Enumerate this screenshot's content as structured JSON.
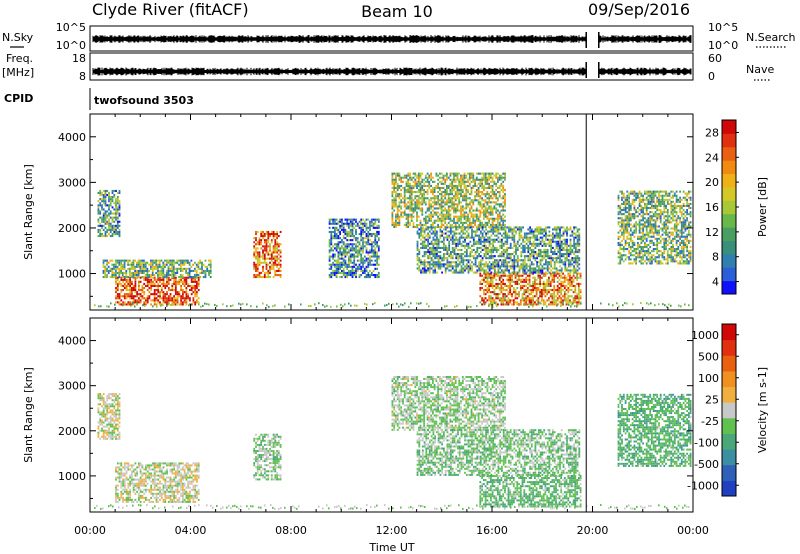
{
  "header": {
    "station": "Clyde River (fitACF)",
    "beam": "Beam 10",
    "date": "09/Sep/2016"
  },
  "params": {
    "nsky_label": "N.Sky",
    "nsky_ticks": [
      "10^5",
      "10^0"
    ],
    "nsearch_label": "N.Search",
    "nsearch_ticks": [
      "10^5",
      "10^0"
    ],
    "freq_label_1": "Freq.",
    "freq_label_2": "[MHz]",
    "freq_ticks": [
      "18",
      "8"
    ],
    "nave_label": "Nave",
    "nave_ticks": [
      "60",
      "0"
    ],
    "cpid_label": "CPID",
    "cpid_value": "twofsound 3503",
    "data_gap": [
      "19:45",
      "20:15"
    ]
  },
  "colors": {
    "power_scale": [
      "#1010ff",
      "#2b5fd8",
      "#2f7fb0",
      "#3a8f7a",
      "#4a9f60",
      "#6ab84a",
      "#a8c838",
      "#d4c828",
      "#f0b018",
      "#f08a10",
      "#e86010",
      "#e03010",
      "#d00808"
    ],
    "velocity_scale": [
      "#2040c0",
      "#3060b8",
      "#3a8fa0",
      "#4aa878",
      "#60c050",
      "#c8c8c8",
      "#f0b040",
      "#f09020",
      "#e86010",
      "#e03010",
      "#d00808"
    ]
  },
  "chart_data": [
    {
      "type": "heatmap",
      "name": "power",
      "ylabel": "Slant Range [km]",
      "yticks": [
        "1000",
        "2000",
        "3000",
        "4000"
      ],
      "ylim": [
        200,
        4500
      ],
      "x_ticks": [
        "00:00",
        "04:00",
        "08:00",
        "12:00",
        "16:00",
        "20:00",
        "00:00"
      ],
      "xlim_hours": [
        0,
        24
      ],
      "colorbar": {
        "label": "Power [dB]",
        "ticks": [
          "28",
          "24",
          "20",
          "16",
          "12",
          "8",
          "4"
        ],
        "range": [
          0,
          30
        ]
      },
      "regions": [
        {
          "t0": 1.0,
          "t1": 4.3,
          "r0": 300,
          "r1": 900,
          "level": 26
        },
        {
          "t0": 0.5,
          "t1": 4.8,
          "r0": 900,
          "r1": 1300,
          "level": 12
        },
        {
          "t0": 0.3,
          "t1": 1.2,
          "r0": 1800,
          "r1": 2800,
          "level": 10
        },
        {
          "t0": 6.5,
          "t1": 7.6,
          "r0": 900,
          "r1": 1900,
          "level": 24
        },
        {
          "t0": 9.5,
          "t1": 11.5,
          "r0": 900,
          "r1": 2200,
          "level": 8
        },
        {
          "t0": 12.0,
          "t1": 16.5,
          "r0": 2000,
          "r1": 3200,
          "level": 14
        },
        {
          "t0": 15.5,
          "t1": 19.5,
          "r0": 300,
          "r1": 1000,
          "level": 22
        },
        {
          "t0": 13.0,
          "t1": 19.5,
          "r0": 1000,
          "r1": 2000,
          "level": 10
        },
        {
          "t0": 21.0,
          "t1": 23.9,
          "r0": 1200,
          "r1": 2800,
          "level": 12
        }
      ]
    },
    {
      "type": "heatmap",
      "name": "velocity",
      "ylabel": "Slant Range [km]",
      "yticks": [
        "1000",
        "2000",
        "3000",
        "4000"
      ],
      "ylim": [
        200,
        4500
      ],
      "x_ticks": [
        "00:00",
        "04:00",
        "08:00",
        "12:00",
        "16:00",
        "20:00",
        "00:00"
      ],
      "xlabel": "Time UT",
      "xlim_hours": [
        0,
        24
      ],
      "colorbar": {
        "label": "Velocity [m s-1]",
        "ticks": [
          "1000",
          "500",
          "100",
          "25",
          "-25",
          "-100",
          "-500",
          "-1000"
        ],
        "range": [
          -1200,
          1200
        ]
      },
      "regions": [
        {
          "t0": 1.0,
          "t1": 4.3,
          "r0": 400,
          "r1": 1300,
          "level": 0
        },
        {
          "t0": 0.3,
          "t1": 1.2,
          "r0": 1800,
          "r1": 2800,
          "level": 0
        },
        {
          "t0": 6.5,
          "t1": 7.6,
          "r0": 900,
          "r1": 1900,
          "level": -150
        },
        {
          "t0": 12.0,
          "t1": 16.5,
          "r0": 2000,
          "r1": 3200,
          "level": -120
        },
        {
          "t0": 15.5,
          "t1": 19.5,
          "r0": 300,
          "r1": 1000,
          "level": -300
        },
        {
          "t0": 13.0,
          "t1": 19.5,
          "r0": 1000,
          "r1": 2000,
          "level": -200
        },
        {
          "t0": 21.0,
          "t1": 23.9,
          "r0": 1200,
          "r1": 2800,
          "level": -350
        }
      ]
    }
  ]
}
